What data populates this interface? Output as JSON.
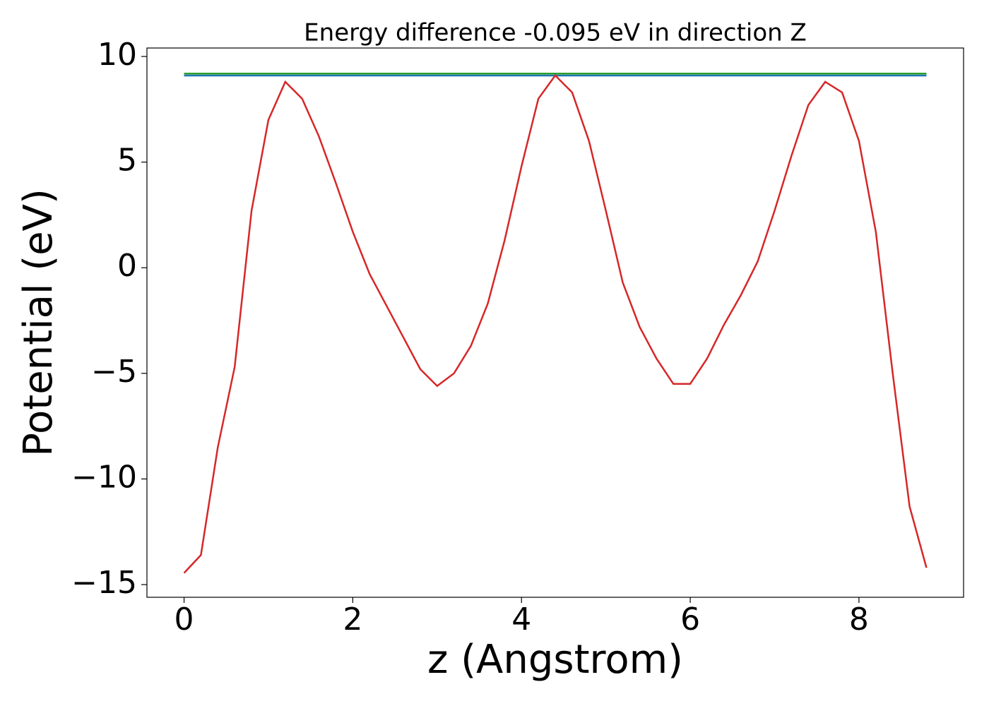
{
  "chart_data": {
    "type": "line",
    "title": "Energy difference -0.095 eV in direction Z",
    "xlabel": "z (Angstrom)",
    "ylabel": "Potential (eV)",
    "xlim": [
      -0.44,
      9.24
    ],
    "ylim": [
      -15.6,
      10.4
    ],
    "xticks": [
      0,
      2,
      4,
      6,
      8
    ],
    "yticks": [
      10,
      5,
      0,
      {
        "value": -5,
        "label": "−5"
      },
      {
        "value": -10,
        "label": "−10"
      },
      {
        "value": -15,
        "label": "−15"
      }
    ],
    "series": [
      {
        "color": "#2ca02c",
        "x": [
          0,
          8.8
        ],
        "values": [
          9.19,
          9.19
        ]
      },
      {
        "color": "#1f77b4",
        "x": [
          0,
          8.8
        ],
        "values": [
          9.095,
          9.095
        ]
      },
      {
        "color": "#d62728",
        "x": [
          0,
          0.2,
          0.4,
          0.6,
          0.8,
          1.0,
          1.2,
          1.4,
          1.6,
          1.8,
          2.0,
          2.2,
          2.4,
          2.6,
          2.8,
          3.0,
          3.2,
          3.4,
          3.6,
          3.8,
          4.0,
          4.2,
          4.4,
          4.6,
          4.8,
          5.0,
          5.2,
          5.4,
          5.6,
          5.8,
          6.0,
          6.2,
          6.4,
          6.6,
          6.8,
          7.0,
          7.2,
          7.4,
          7.6,
          7.8,
          8.0,
          8.2,
          8.4,
          8.6,
          8.8
        ],
        "values": [
          -14.45,
          -13.6,
          -8.5,
          -4.7,
          2.7,
          7.0,
          8.8,
          8.0,
          6.2,
          4.0,
          1.7,
          -0.3,
          -1.8,
          -3.3,
          -4.8,
          -5.6,
          -5.0,
          -3.7,
          -1.7,
          1.3,
          4.8,
          8.0,
          9.1,
          8.3,
          6.0,
          2.7,
          -0.7,
          -2.8,
          -4.3,
          -5.5,
          -5.5,
          -4.3,
          -2.7,
          -1.3,
          0.3,
          2.7,
          5.3,
          7.7,
          8.8,
          8.3,
          6.0,
          1.7,
          -5.0,
          -11.3,
          -14.2
        ]
      }
    ]
  }
}
